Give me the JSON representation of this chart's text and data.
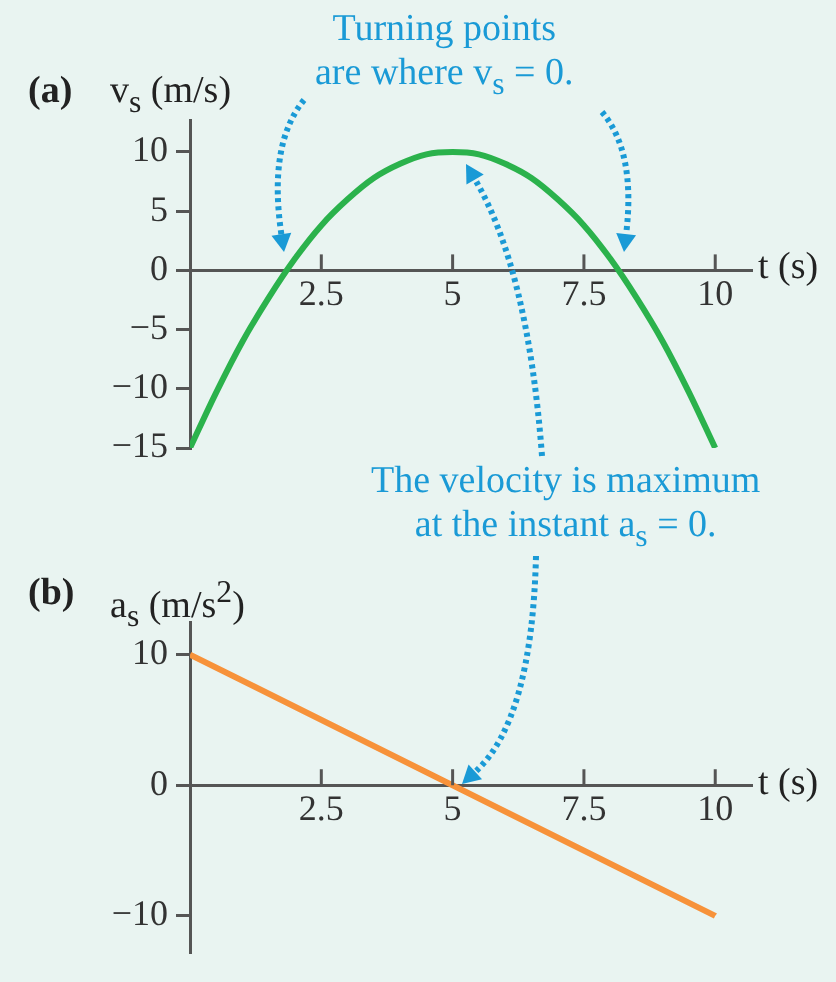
{
  "chart_data": [
    {
      "type": "line",
      "title": "(a)",
      "ylabel": "v$_{s}$ (m/s)",
      "xlabel": "t (s)",
      "marker": "none",
      "x": [
        0,
        0.5,
        1,
        1.5,
        2,
        2.5,
        3,
        3.5,
        4,
        4.5,
        5,
        5.5,
        6,
        6.5,
        7,
        7.5,
        8,
        8.5,
        9,
        9.5,
        10
      ],
      "series": [
        {
          "color": "#2bb24c",
          "values": [
            -15,
            -10.3,
            -6,
            -2.3,
            1,
            3.8,
            6,
            7.8,
            9,
            9.8,
            10,
            9.8,
            9,
            7.8,
            6,
            3.8,
            1,
            -2.3,
            -6,
            -10.3,
            -15
          ]
        }
      ],
      "xlim": [
        0,
        10.7
      ],
      "ylim": [
        -15,
        12.7
      ],
      "xticks": [
        2.5,
        5,
        7.5,
        10
      ],
      "yticks": [
        10,
        5,
        0,
        {
          "value": -5,
          "label": "−5"
        },
        {
          "value": -10,
          "label": "−10"
        },
        {
          "value": -15,
          "label": "−15"
        }
      ],
      "annotations": [
        "Turning points\nare where v$_{s}$ = 0.",
        "The velocity is maximum\nat the instant a$_{s}$ = 0."
      ]
    },
    {
      "type": "line",
      "title": "(b)",
      "ylabel": "a$_{s}$ (m/s$^{2}$)",
      "xlabel": "t (s)",
      "marker": "none",
      "x": [
        0,
        10
      ],
      "series": [
        {
          "color": "#f7923a",
          "values": [
            10,
            -10
          ]
        }
      ],
      "xlim": [
        0,
        10.7
      ],
      "ylim": [
        -12.8,
        12.5
      ],
      "xticks": [
        2.5,
        5,
        7.5,
        10
      ],
      "yticks": [
        10,
        0,
        {
          "value": -10,
          "label": "−10"
        }
      ]
    }
  ]
}
